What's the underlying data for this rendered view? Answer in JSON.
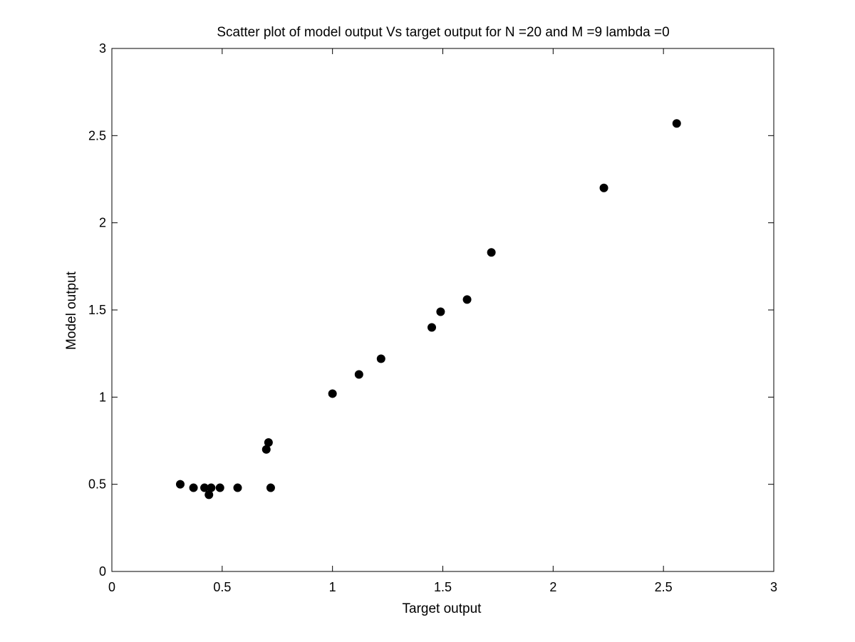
{
  "chart_data": {
    "type": "scatter",
    "title": "Scatter plot of model output Vs target output for N =20 and M =9 lambda =0",
    "xlabel": "Target output",
    "ylabel": "Model output",
    "xlim": [
      0,
      3
    ],
    "ylim": [
      0,
      3
    ],
    "xticks": [
      "0",
      "0.5",
      "1",
      "1.5",
      "2",
      "2.5",
      "3"
    ],
    "yticks": [
      "0",
      "0.5",
      "1",
      "1.5",
      "2",
      "2.5",
      "3"
    ],
    "grid": false,
    "marker_color": "#000000",
    "points": [
      {
        "x": 0.31,
        "y": 0.5
      },
      {
        "x": 0.37,
        "y": 0.48
      },
      {
        "x": 0.42,
        "y": 0.48
      },
      {
        "x": 0.44,
        "y": 0.44
      },
      {
        "x": 0.45,
        "y": 0.48
      },
      {
        "x": 0.49,
        "y": 0.48
      },
      {
        "x": 0.57,
        "y": 0.48
      },
      {
        "x": 0.7,
        "y": 0.7
      },
      {
        "x": 0.71,
        "y": 0.74
      },
      {
        "x": 0.72,
        "y": 0.48
      },
      {
        "x": 1.0,
        "y": 1.02
      },
      {
        "x": 1.12,
        "y": 1.13
      },
      {
        "x": 1.22,
        "y": 1.22
      },
      {
        "x": 1.45,
        "y": 1.4
      },
      {
        "x": 1.49,
        "y": 1.49
      },
      {
        "x": 1.61,
        "y": 1.56
      },
      {
        "x": 1.72,
        "y": 1.83
      },
      {
        "x": 2.23,
        "y": 2.2
      },
      {
        "x": 2.56,
        "y": 2.57
      }
    ]
  }
}
